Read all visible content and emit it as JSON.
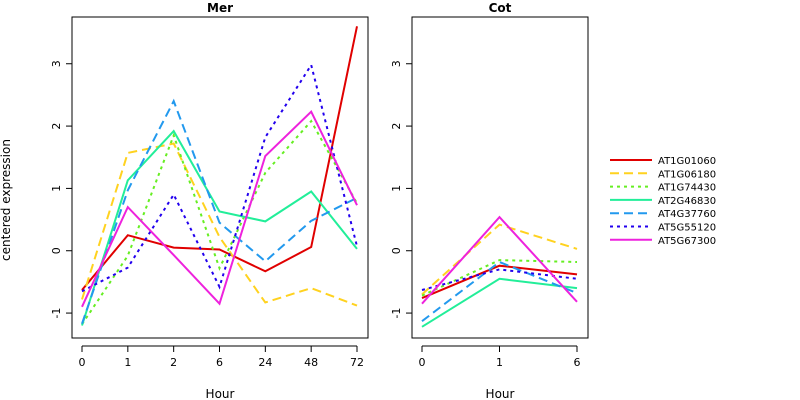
{
  "ylabel": "centered expression",
  "xlabel": "Hour",
  "yticks": [
    -1,
    0,
    1,
    2,
    3
  ],
  "ylim": [
    -1.4,
    3.75
  ],
  "series_meta": [
    {
      "name": "AT1G01060",
      "color": "#e00000",
      "dash": "solid"
    },
    {
      "name": "AT1G06180",
      "color": "#ffd21f",
      "dash": "dashed"
    },
    {
      "name": "AT1G74430",
      "color": "#66ee22",
      "dash": "dotted"
    },
    {
      "name": "AT2G46830",
      "color": "#22ee99",
      "dash": "solid"
    },
    {
      "name": "AT4G37760",
      "color": "#2299ee",
      "dash": "dashed"
    },
    {
      "name": "AT5G55120",
      "color": "#2200ee",
      "dash": "dotted"
    },
    {
      "name": "AT5G67300",
      "color": "#ee22dd",
      "dash": "solid"
    }
  ],
  "chart_data": [
    {
      "type": "line",
      "title": "Mer",
      "x": [
        "0",
        "1",
        "2",
        "6",
        "24",
        "48",
        "72"
      ],
      "xlabel": "Hour",
      "ylabel": "centered expression",
      "ylim": [
        -1.4,
        3.75
      ],
      "series": [
        {
          "name": "AT1G01060",
          "values": [
            -0.63,
            0.25,
            0.05,
            0.02,
            -0.33,
            0.06,
            3.6
          ]
        },
        {
          "name": "AT1G06180",
          "values": [
            -0.78,
            1.57,
            1.72,
            0.22,
            -0.83,
            -0.6,
            -0.88
          ]
        },
        {
          "name": "AT1G74430",
          "values": [
            -1.18,
            -0.08,
            1.85,
            -0.28,
            1.25,
            2.08,
            0.76
          ]
        },
        {
          "name": "AT2G46830",
          "values": [
            -1.2,
            1.13,
            1.92,
            0.63,
            0.47,
            0.95,
            0.03
          ]
        },
        {
          "name": "AT4G37760",
          "values": [
            -1.17,
            0.97,
            2.4,
            0.45,
            -0.17,
            0.48,
            0.85
          ]
        },
        {
          "name": "AT5G55120",
          "values": [
            -0.65,
            -0.27,
            0.9,
            -0.58,
            1.82,
            2.98,
            0.07
          ]
        },
        {
          "name": "AT5G67300",
          "values": [
            -0.9,
            0.7,
            -0.07,
            -0.85,
            1.52,
            2.23,
            0.73
          ]
        }
      ]
    },
    {
      "type": "line",
      "title": "Cot",
      "x": [
        "0",
        "1",
        "6"
      ],
      "xlabel": "Hour",
      "ylim": [
        -1.4,
        3.75
      ],
      "series": [
        {
          "name": "AT1G01060",
          "values": [
            -0.76,
            -0.24,
            -0.38
          ]
        },
        {
          "name": "AT1G06180",
          "values": [
            -0.7,
            0.42,
            0.03
          ]
        },
        {
          "name": "AT1G74430",
          "values": [
            -0.72,
            -0.15,
            -0.18
          ]
        },
        {
          "name": "AT2G46830",
          "values": [
            -1.22,
            -0.45,
            -0.6
          ]
        },
        {
          "name": "AT4G37760",
          "values": [
            -1.13,
            -0.18,
            -0.68
          ]
        },
        {
          "name": "AT5G55120",
          "values": [
            -0.63,
            -0.3,
            -0.45
          ]
        },
        {
          "name": "AT5G67300",
          "values": [
            -0.85,
            0.54,
            -0.82
          ]
        }
      ]
    }
  ]
}
